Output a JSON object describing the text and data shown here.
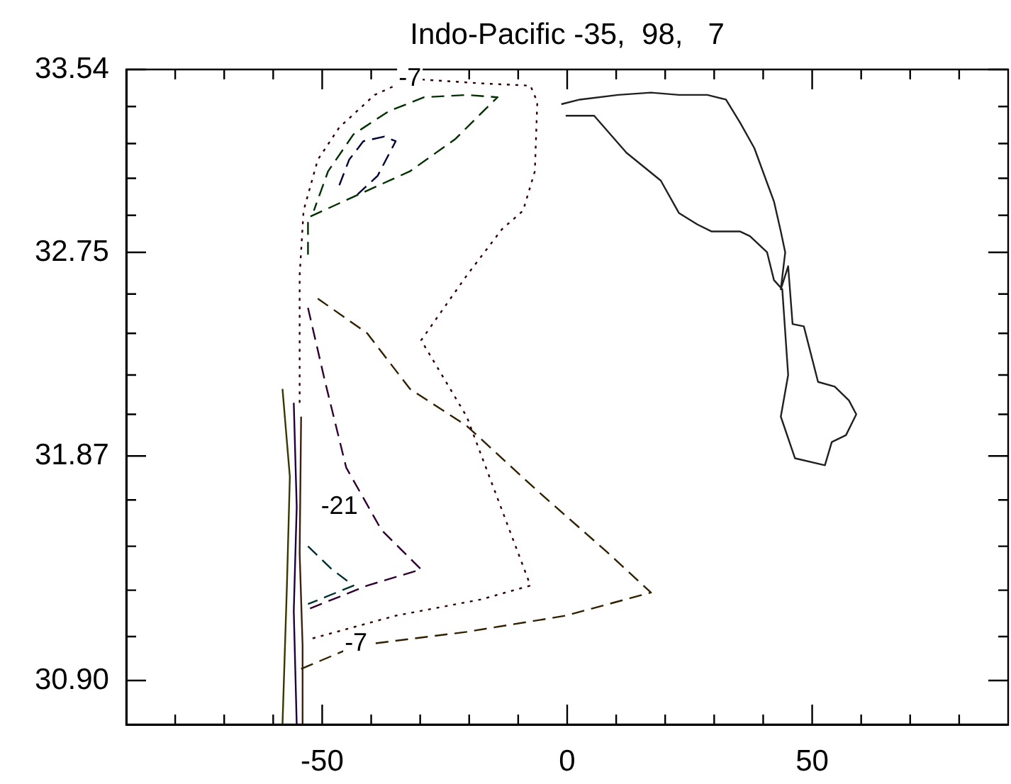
{
  "chart_data": {
    "type": "line",
    "title": "Indo-Pacific -35,  98,   7",
    "xlim": [
      -90,
      90
    ],
    "xticks": [
      {
        "value": -80,
        "label": null
      },
      {
        "value": -70,
        "label": null
      },
      {
        "value": -60,
        "label": null
      },
      -50,
      {
        "value": -40,
        "label": null
      },
      {
        "value": -30,
        "label": null
      },
      {
        "value": -20,
        "label": null
      },
      {
        "value": -10,
        "label": null
      },
      0,
      {
        "value": 10,
        "label": null
      },
      {
        "value": 20,
        "label": null
      },
      {
        "value": 30,
        "label": null
      },
      {
        "value": 40,
        "label": null
      },
      50,
      {
        "value": 60,
        "label": null
      },
      {
        "value": 70,
        "label": null
      },
      {
        "value": 80,
        "label": null
      }
    ],
    "ylim": [
      30.71,
      33.54
    ],
    "yticks": [
      {
        "value": 30.9,
        "label": "30.90"
      },
      {
        "value": 31.09,
        "label": null
      },
      {
        "value": 31.29,
        "label": null
      },
      {
        "value": 31.48,
        "label": null
      },
      {
        "value": 31.68,
        "label": null
      },
      {
        "value": 31.87,
        "label": "31.87"
      },
      {
        "value": 32.05,
        "label": null
      },
      {
        "value": 32.22,
        "label": null
      },
      {
        "value": 32.4,
        "label": null
      },
      {
        "value": 32.57,
        "label": null
      },
      {
        "value": 32.75,
        "label": "32.75"
      },
      {
        "value": 32.91,
        "label": null
      },
      {
        "value": 33.07,
        "label": null
      },
      {
        "value": 33.22,
        "label": null
      },
      {
        "value": 33.38,
        "label": null
      },
      {
        "value": 33.54,
        "label": "33.54"
      }
    ],
    "legend": false,
    "series": [
      {
        "color": "#202020",
        "line_style": "solid",
        "x": [
          -1.2,
          2.6,
          10.4,
          17.1,
          22.8,
          28.6,
          32.4,
          35.3,
          38.2,
          40.8,
          42.2,
          43.6,
          44.5,
          43.6,
          45.1,
          46.0,
          48.3,
          51.2,
          54.6,
          57.5,
          59.0,
          56.9,
          54.0,
          52.6,
          46.5,
          43.6,
          45.1,
          43.9,
          42.2,
          40.8,
          37.3,
          35.3,
          29.5,
          26.6,
          22.8,
          19.1,
          12.1,
          5.5,
          -0.3
        ],
        "values": [
          33.39,
          33.41,
          33.43,
          33.44,
          33.43,
          33.43,
          33.41,
          33.31,
          33.2,
          33.05,
          32.97,
          32.84,
          32.75,
          32.59,
          32.69,
          32.44,
          32.43,
          32.19,
          32.17,
          32.11,
          32.05,
          31.96,
          31.93,
          31.83,
          31.86,
          32.04,
          32.22,
          32.59,
          32.63,
          32.75,
          32.82,
          32.84,
          32.84,
          32.87,
          32.92,
          33.06,
          33.18,
          33.34,
          33.34
        ]
      },
      {
        "color": "#300000",
        "line_style": "dotted",
        "x": [
          -54.6,
          -54.6,
          -53.8,
          -50.9,
          -46.5,
          -39.3,
          -32.1,
          -17.6,
          -7.5,
          -6.1,
          -6.6,
          -9.0,
          -13.3,
          -20.5,
          -29.8,
          -20.5,
          -7.5,
          -17.6,
          -35.0,
          -52.3
        ],
        "values": [
          32.1,
          32.65,
          32.93,
          33.15,
          33.29,
          33.43,
          33.5,
          33.48,
          33.47,
          33.4,
          33.1,
          32.93,
          32.85,
          32.65,
          32.37,
          32.04,
          31.31,
          31.25,
          31.18,
          31.08
        ]
      },
      {
        "color": "#003000",
        "line_style": "dashed",
        "x": [
          -52.9,
          -52.9,
          -43.6,
          -32.1,
          -22.8,
          -17.6,
          -14.2,
          -20.5,
          -29.2,
          -36.4,
          -43.6,
          -48.8,
          -51.7
        ],
        "values": [
          32.74,
          32.9,
          32.99,
          33.1,
          33.24,
          33.35,
          33.42,
          33.43,
          33.42,
          33.36,
          33.26,
          33.1,
          32.93
        ]
      },
      {
        "color": "#000038",
        "line_style": "dashed",
        "x": [
          -46.5,
          -44.5,
          -41.6,
          -37.3,
          -35.0,
          -38.7,
          -42.8
        ],
        "values": [
          33.04,
          33.15,
          33.23,
          33.25,
          33.23,
          33.08,
          33.0
        ]
      },
      {
        "color": "#302000",
        "line_style": "dashed",
        "x": [
          -54.3,
          -43.1,
          -20.5,
          -0.3,
          17.1,
          8.4,
          -6.1,
          -20.5,
          -32.1,
          -40.8,
          -50.9
        ],
        "values": [
          30.95,
          31.05,
          31.11,
          31.18,
          31.28,
          31.45,
          31.72,
          32.0,
          32.16,
          32.4,
          32.55
        ]
      },
      {
        "color": "#300030",
        "line_style": "dashed",
        "x": [
          -52.9,
          -49.4,
          -45.1,
          -37.9,
          -29.8,
          -40.8,
          -53.8
        ],
        "values": [
          32.51,
          32.19,
          31.82,
          31.55,
          31.38,
          31.31,
          31.2
        ]
      },
      {
        "color": "#003030",
        "line_style": "dashed",
        "x": [
          -52.9,
          -48.0,
          -43.6,
          -49.4,
          -52.9
        ],
        "values": [
          31.48,
          31.38,
          31.31,
          31.26,
          31.23
        ]
      },
      {
        "color": "#383800",
        "line_style": "solid",
        "x": [
          -58.1,
          -56.6,
          -57.2,
          -58.1
        ],
        "values": [
          32.16,
          31.78,
          31.31,
          30.71
        ]
      },
      {
        "color": "#200040",
        "line_style": "solid",
        "x": [
          -55.8,
          -55.2,
          -55.8,
          -55.2
        ],
        "values": [
          32.1,
          31.65,
          31.2,
          30.71
        ]
      },
      {
        "color": "#402010",
        "line_style": "solid",
        "x": [
          -54.3,
          -54.6,
          -54.0,
          -54.0
        ],
        "values": [
          32.04,
          31.45,
          31.05,
          30.71
        ]
      }
    ],
    "annotations": [
      {
        "text": "-7",
        "x": -32.1,
        "y": 33.5
      },
      {
        "text": "-7",
        "x": -43.1,
        "y": 31.06
      },
      {
        "text": "-21",
        "x": -46.5,
        "y": 31.65
      }
    ]
  }
}
